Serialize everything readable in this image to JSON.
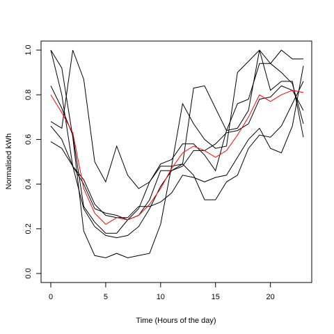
{
  "chart_data": {
    "type": "line",
    "xlabel": "Time (Hours of the day)",
    "ylabel": "Normalised kWh",
    "xlim": [
      0,
      23
    ],
    "ylim": [
      0,
      1
    ],
    "x_ticks": [
      0,
      5,
      10,
      15,
      20
    ],
    "y_ticks": [
      0.0,
      0.2,
      0.4,
      0.6,
      0.8,
      1.0
    ],
    "x_tick_labels": [
      "0",
      "5",
      "10",
      "15",
      "20"
    ],
    "y_tick_labels": [
      "0.0",
      "0.2",
      "0.4",
      "0.6",
      "0.8",
      "1.0"
    ],
    "grid": false,
    "x": [
      0,
      1,
      2,
      3,
      4,
      5,
      6,
      7,
      8,
      9,
      10,
      11,
      12,
      13,
      14,
      15,
      16,
      17,
      18,
      19,
      20,
      21,
      22,
      23
    ],
    "series": [
      {
        "color": "#000000",
        "values": [
          1.0,
          0.92,
          0.61,
          0.19,
          0.08,
          0.07,
          0.09,
          0.07,
          0.08,
          0.09,
          0.22,
          0.48,
          0.49,
          0.44,
          0.33,
          0.33,
          0.41,
          0.44,
          0.56,
          0.62,
          0.61,
          0.66,
          0.76,
          0.86
        ]
      },
      {
        "color": "#000000",
        "values": [
          0.68,
          0.65,
          1.0,
          0.87,
          0.5,
          0.41,
          0.57,
          0.44,
          0.38,
          0.41,
          0.48,
          0.48,
          0.76,
          0.67,
          0.6,
          0.56,
          0.57,
          0.9,
          0.95,
          1.0,
          0.94,
          1.0,
          0.96,
          0.96
        ]
      },
      {
        "color": "#000000",
        "values": [
          1.0,
          0.8,
          0.48,
          0.29,
          0.21,
          0.17,
          0.16,
          0.17,
          0.21,
          0.29,
          0.39,
          0.46,
          0.49,
          0.83,
          0.84,
          0.74,
          0.64,
          0.65,
          0.73,
          1.0,
          0.82,
          0.86,
          0.86,
          0.61
        ]
      },
      {
        "color": "#000000",
        "values": [
          0.84,
          0.74,
          0.62,
          0.3,
          0.23,
          0.18,
          0.18,
          0.24,
          0.29,
          0.41,
          0.49,
          0.51,
          0.58,
          0.58,
          0.53,
          0.46,
          0.64,
          0.76,
          0.78,
          0.94,
          0.94,
          0.9,
          0.85,
          0.67
        ]
      },
      {
        "color": "#000000",
        "values": [
          0.66,
          0.6,
          0.48,
          0.42,
          0.31,
          0.26,
          0.25,
          0.25,
          0.3,
          0.3,
          0.32,
          0.36,
          0.44,
          0.43,
          0.41,
          0.43,
          0.44,
          0.52,
          0.6,
          0.65,
          0.56,
          0.54,
          0.66,
          0.93
        ]
      },
      {
        "color": "#000000",
        "values": [
          0.59,
          0.56,
          0.48,
          0.4,
          0.29,
          0.27,
          0.26,
          0.24,
          0.26,
          0.33,
          0.46,
          0.46,
          0.48,
          0.55,
          0.55,
          0.58,
          0.63,
          0.64,
          0.67,
          0.78,
          0.79,
          0.84,
          0.82,
          0.73
        ]
      },
      {
        "color": "#ff0000",
        "values": [
          0.8,
          0.72,
          0.63,
          0.38,
          0.27,
          0.22,
          0.25,
          0.24,
          0.26,
          0.31,
          0.38,
          0.47,
          0.54,
          0.57,
          0.55,
          0.52,
          0.55,
          0.62,
          0.7,
          0.8,
          0.77,
          0.8,
          0.82,
          0.81
        ]
      }
    ]
  }
}
